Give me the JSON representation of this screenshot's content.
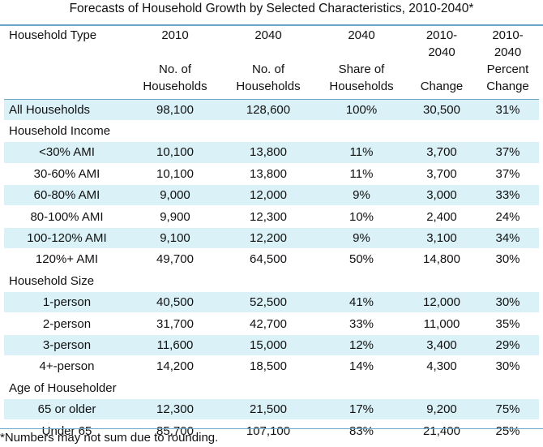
{
  "title": "Forecasts of Household Growth by Selected Characteristics, 2010-2040*",
  "headers": [
    {
      "top": "Household Type",
      "mid": "",
      "bot": ""
    },
    {
      "top": "2010",
      "mid": "No. of",
      "bot": "Households"
    },
    {
      "top": "2040",
      "mid": "No. of",
      "bot": "Households"
    },
    {
      "top": "2040",
      "mid": "Share of",
      "bot": "Households"
    },
    {
      "top": "2010-",
      "mid": "2040",
      "bot": "Change"
    },
    {
      "top": "2010-",
      "mid": "2040",
      "bot2": "Percent",
      "bot": "Change"
    }
  ],
  "all": {
    "label": "All Households",
    "v2010": "98,100",
    "v2040": "128,600",
    "share": "100%",
    "change": "30,500",
    "pct": "31%"
  },
  "sections": [
    {
      "name": "Household Income",
      "rows": [
        {
          "label": "<30% AMI",
          "v2010": "10,100",
          "v2040": "13,800",
          "share": "11%",
          "change": "3,700",
          "pct": "37%"
        },
        {
          "label": "30-60% AMI",
          "v2010": "10,100",
          "v2040": "13,800",
          "share": "11%",
          "change": "3,700",
          "pct": "37%"
        },
        {
          "label": "60-80% AMI",
          "v2010": "9,000",
          "v2040": "12,000",
          "share": "9%",
          "change": "3,000",
          "pct": "33%"
        },
        {
          "label": "80-100% AMI",
          "v2010": "9,900",
          "v2040": "12,300",
          "share": "10%",
          "change": "2,400",
          "pct": "24%"
        },
        {
          "label": "100-120% AMI",
          "v2010": "9,100",
          "v2040": "12,200",
          "share": "9%",
          "change": "3,100",
          "pct": "34%"
        },
        {
          "label": "120%+ AMI",
          "v2010": "49,700",
          "v2040": "64,500",
          "share": "50%",
          "change": "14,800",
          "pct": "30%"
        }
      ]
    },
    {
      "name": "Household Size",
      "rows": [
        {
          "label": "1-person",
          "v2010": "40,500",
          "v2040": "52,500",
          "share": "41%",
          "change": "12,000",
          "pct": "30%"
        },
        {
          "label": "2-person",
          "v2010": "31,700",
          "v2040": "42,700",
          "share": "33%",
          "change": "11,000",
          "pct": "35%"
        },
        {
          "label": "3-person",
          "v2010": "11,600",
          "v2040": "15,000",
          "share": "12%",
          "change": "3,400",
          "pct": "29%"
        },
        {
          "label": "4+-person",
          "v2010": "14,200",
          "v2040": "18,500",
          "share": "14%",
          "change": "4,300",
          "pct": "30%"
        }
      ]
    },
    {
      "name": "Age of Householder",
      "rows": [
        {
          "label": "65 or older",
          "v2010": "12,300",
          "v2040": "21,500",
          "share": "17%",
          "change": "9,200",
          "pct": "75%"
        },
        {
          "label": "Under 65",
          "v2010": "85,700",
          "v2040": "107,100",
          "share": "83%",
          "change": "21,400",
          "pct": "25%"
        }
      ]
    }
  ],
  "footnote": "*Numbers may not sum due to rounding.",
  "colors": {
    "shade": "#d9f1f7",
    "rule": "#6aa6c8"
  }
}
